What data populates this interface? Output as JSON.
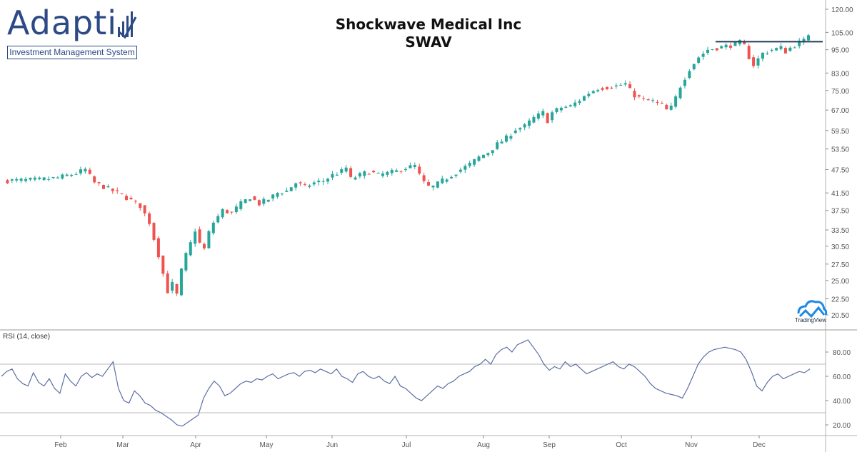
{
  "branding": {
    "logo_text": "Adapti",
    "logo_tagline": "Investment Management System",
    "tv_label": "TradingView"
  },
  "header": {
    "title_line1": "Shockwave Medical Inc",
    "title_line2": "SWAV"
  },
  "colors": {
    "up": "#26a69a",
    "down": "#ef5350",
    "resistance": "#1f3b57",
    "rsi_line": "#5b6fa3",
    "grid": "#cfcfcf",
    "axis_text": "#555555",
    "brand": "#2d4a86"
  },
  "chart_data": [
    {
      "type": "candlestick",
      "title": "Shockwave Medical Inc",
      "subtitle": "SWAV",
      "y_scale": "log",
      "y_ticks": [
        120,
        105,
        95,
        83,
        75,
        67,
        59.5,
        53.5,
        47.5,
        41.5,
        37.5,
        33.5,
        30.5,
        27.5,
        25,
        22.5,
        20.5
      ],
      "y_tick_labels": [
        "120.00",
        "105.00",
        "95.00",
        "83.00",
        "75.00",
        "67.00",
        "59.50",
        "53.50",
        "47.50",
        "41.50",
        "37.50",
        "33.50",
        "30.50",
        "27.50",
        "25.00",
        "22.50",
        "20.50"
      ],
      "x_labels": [
        "Feb",
        "Mar",
        "Apr",
        "May",
        "Jun",
        "Jul",
        "Aug",
        "Sep",
        "Oct",
        "Nov",
        "Dec"
      ],
      "resistance_level": 99.5,
      "close_path": [
        [
          0,
          44.5
        ],
        [
          8,
          44.8
        ],
        [
          12,
          45.3
        ],
        [
          16,
          46.5
        ],
        [
          18,
          47.5
        ],
        [
          20,
          44
        ],
        [
          22,
          43
        ],
        [
          24,
          42
        ],
        [
          26,
          41
        ],
        [
          30,
          38.5
        ],
        [
          32,
          35
        ],
        [
          34,
          29
        ],
        [
          35,
          26
        ],
        [
          36,
          23.5
        ],
        [
          37,
          24.5
        ],
        [
          38,
          23
        ],
        [
          39,
          26.5
        ],
        [
          40,
          29
        ],
        [
          41,
          31
        ],
        [
          42,
          33.5
        ],
        [
          43,
          31
        ],
        [
          44,
          30
        ],
        [
          45,
          33
        ],
        [
          46,
          35
        ],
        [
          48,
          37.5
        ],
        [
          50,
          37
        ],
        [
          52,
          39
        ],
        [
          54,
          40.5
        ],
        [
          56,
          39
        ],
        [
          58,
          40
        ],
        [
          60,
          41.5
        ],
        [
          62,
          42
        ],
        [
          64,
          44
        ],
        [
          66,
          43
        ],
        [
          68,
          44
        ],
        [
          70,
          44.5
        ],
        [
          72,
          46
        ],
        [
          74,
          47
        ],
        [
          75,
          48
        ],
        [
          76,
          45
        ],
        [
          78,
          46
        ],
        [
          80,
          47
        ],
        [
          82,
          46
        ],
        [
          84,
          46.5
        ],
        [
          86,
          47
        ],
        [
          88,
          48
        ],
        [
          90,
          48.5
        ],
        [
          91,
          46
        ],
        [
          92,
          44
        ],
        [
          93,
          43
        ],
        [
          94,
          43
        ],
        [
          96,
          44.5
        ],
        [
          98,
          46
        ],
        [
          100,
          47.5
        ],
        [
          102,
          49
        ],
        [
          104,
          51
        ],
        [
          106,
          52.5
        ],
        [
          108,
          55
        ],
        [
          110,
          57
        ],
        [
          112,
          60
        ],
        [
          114,
          61
        ],
        [
          116,
          64
        ],
        [
          118,
          66
        ],
        [
          119,
          63
        ],
        [
          120,
          66
        ],
        [
          122,
          68
        ],
        [
          124,
          68.5
        ],
        [
          126,
          71
        ],
        [
          128,
          74
        ],
        [
          130,
          76
        ],
        [
          132,
          76.5
        ],
        [
          134,
          77
        ],
        [
          136,
          78
        ],
        [
          137,
          75
        ],
        [
          138,
          73
        ],
        [
          140,
          71
        ],
        [
          142,
          70.5
        ],
        [
          144,
          69
        ],
        [
          145,
          67
        ],
        [
          146,
          68
        ],
        [
          147,
          72
        ],
        [
          148,
          77
        ],
        [
          150,
          85
        ],
        [
          152,
          91
        ],
        [
          154,
          95
        ],
        [
          156,
          96
        ],
        [
          158,
          97
        ],
        [
          160,
          98
        ],
        [
          161,
          99
        ],
        [
          162,
          97
        ],
        [
          163,
          91
        ],
        [
          164,
          87
        ],
        [
          165,
          90
        ],
        [
          166,
          93
        ],
        [
          168,
          95
        ],
        [
          170,
          96
        ],
        [
          171,
          94
        ],
        [
          172,
          96
        ],
        [
          174,
          99
        ],
        [
          175,
          100
        ],
        [
          176,
          104
        ]
      ]
    },
    {
      "type": "line",
      "indicator": "RSI (14, close)",
      "y_ticks": [
        80,
        60,
        40,
        20
      ],
      "y_tick_labels": [
        "80.00",
        "60.00",
        "40.00",
        "20.00"
      ],
      "bands": [
        70,
        30
      ],
      "series": [
        {
          "name": "RSI (14, close)",
          "values": [
            60,
            64,
            66,
            58,
            54,
            52,
            63,
            55,
            52,
            58,
            50,
            46,
            62,
            56,
            52,
            60,
            63,
            59,
            62,
            60,
            66,
            72,
            50,
            40,
            38,
            48,
            44,
            38,
            36,
            32,
            30,
            27,
            24,
            20,
            19,
            22,
            25,
            28,
            42,
            50,
            56,
            52,
            44,
            46,
            50,
            54,
            56,
            55,
            58,
            57,
            60,
            62,
            58,
            60,
            62,
            63,
            60,
            64,
            65,
            63,
            66,
            64,
            62,
            66,
            60,
            58,
            55,
            62,
            64,
            60,
            58,
            60,
            56,
            54,
            60,
            52,
            50,
            46,
            42,
            40,
            44,
            48,
            52,
            50,
            54,
            56,
            60,
            62,
            64,
            68,
            70,
            74,
            70,
            78,
            82,
            84,
            80,
            86,
            88,
            90,
            84,
            78,
            70,
            65,
            68,
            66,
            72,
            68,
            70,
            66,
            62,
            64,
            66,
            68,
            70,
            72,
            68,
            66,
            70,
            68,
            64,
            60,
            54,
            50,
            48,
            46,
            45,
            44,
            42,
            50,
            60,
            70,
            76,
            80,
            82,
            83,
            84,
            83,
            82,
            80,
            74,
            64,
            52,
            48,
            55,
            60,
            62,
            58,
            60,
            62,
            64,
            63,
            66
          ]
        }
      ]
    }
  ]
}
